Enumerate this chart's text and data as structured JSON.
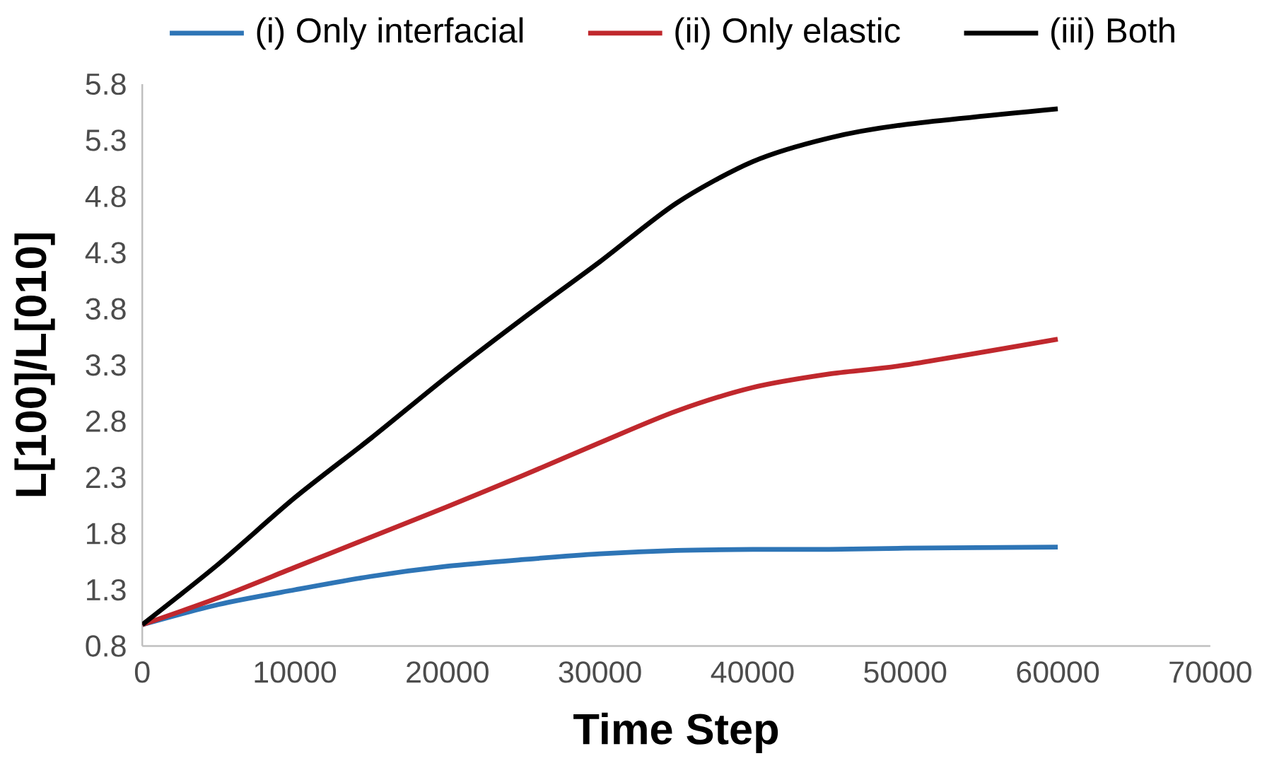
{
  "chart_data": {
    "type": "line",
    "xlabel": "Time Step",
    "ylabel": "L[100]/L[010]",
    "x": [
      0,
      5000,
      10000,
      15000,
      20000,
      25000,
      30000,
      35000,
      40000,
      45000,
      50000,
      60000
    ],
    "series": [
      {
        "name": "(i) Only interfacial",
        "color": "#2e75b6",
        "values": [
          0.99,
          1.17,
          1.3,
          1.42,
          1.51,
          1.57,
          1.62,
          1.65,
          1.66,
          1.66,
          1.67,
          1.68
        ]
      },
      {
        "name": "(ii) Only elastic",
        "color": "#c0282d",
        "values": [
          0.99,
          1.23,
          1.5,
          1.77,
          2.04,
          2.32,
          2.61,
          2.89,
          3.1,
          3.22,
          3.3,
          3.53
        ]
      },
      {
        "name": "(iii) Both",
        "color": "#000000",
        "values": [
          0.99,
          1.53,
          2.12,
          2.65,
          3.2,
          3.72,
          4.22,
          4.74,
          5.11,
          5.32,
          5.44,
          5.58
        ]
      }
    ],
    "xlim": [
      0,
      70000
    ],
    "xticks": [
      0,
      10000,
      20000,
      30000,
      40000,
      50000,
      60000,
      70000
    ],
    "ylim": [
      0.8,
      5.8
    ],
    "yticks": [
      0.8,
      1.3,
      1.8,
      2.3,
      2.8,
      3.3,
      3.8,
      4.3,
      4.8,
      5.3,
      5.8
    ],
    "legend": "top",
    "grid": false,
    "marker": "none",
    "line_style": "solid"
  }
}
